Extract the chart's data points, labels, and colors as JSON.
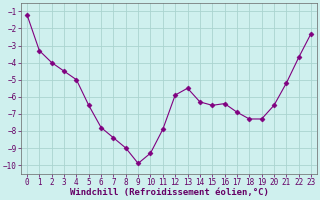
{
  "x": [
    0,
    1,
    2,
    3,
    4,
    5,
    6,
    7,
    8,
    9,
    10,
    11,
    12,
    13,
    14,
    15,
    16,
    17,
    18,
    19,
    20,
    21,
    22,
    23
  ],
  "y": [
    -1.2,
    -3.3,
    -4.0,
    -4.5,
    -5.0,
    -6.5,
    -7.8,
    -8.4,
    -9.0,
    -9.9,
    -9.3,
    -7.9,
    -5.9,
    -5.5,
    -6.3,
    -6.5,
    -6.4,
    -6.9,
    -7.3,
    -7.3,
    -6.5,
    -5.2,
    -3.7,
    -2.3
  ],
  "line_color": "#800080",
  "marker": "D",
  "marker_size": 2.5,
  "bg_color": "#cff0ee",
  "grid_color": "#aad4d0",
  "xlabel": "Windchill (Refroidissement éolien,°C)",
  "xlabel_fontsize": 6.5,
  "tick_fontsize": 5.5,
  "xlim": [
    -0.5,
    23.5
  ],
  "ylim": [
    -10.5,
    -0.5
  ],
  "yticks": [
    -10,
    -9,
    -8,
    -7,
    -6,
    -5,
    -4,
    -3,
    -2,
    -1
  ],
  "xticks": [
    0,
    1,
    2,
    3,
    4,
    5,
    6,
    7,
    8,
    9,
    10,
    11,
    12,
    13,
    14,
    15,
    16,
    17,
    18,
    19,
    20,
    21,
    22,
    23
  ]
}
